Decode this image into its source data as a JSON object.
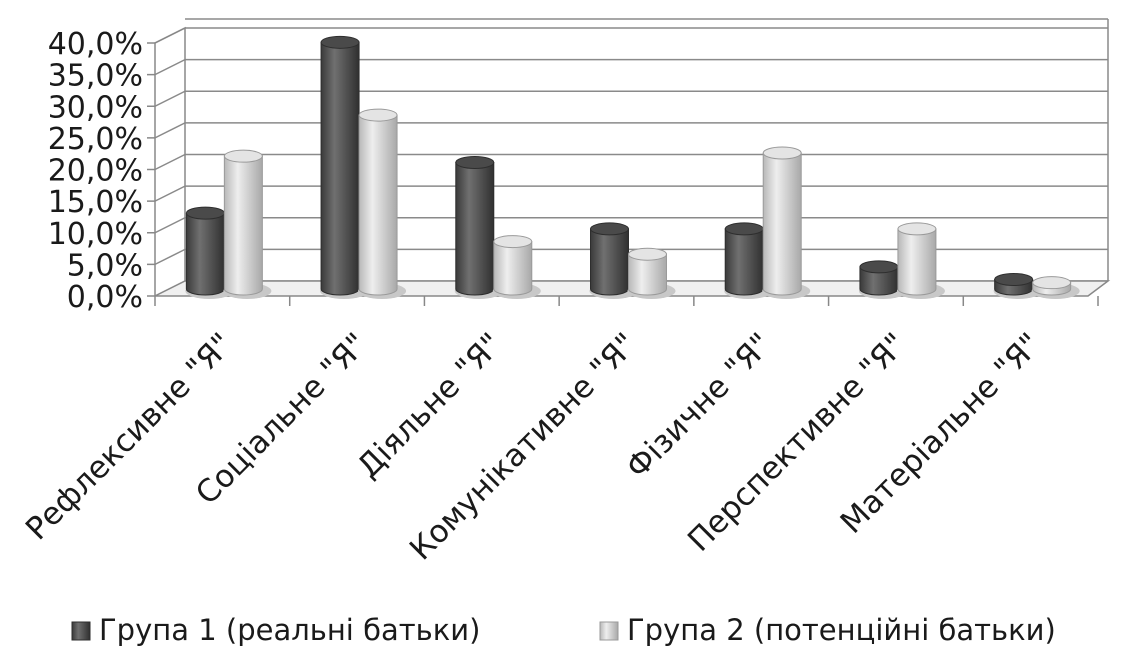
{
  "chart_data": {
    "type": "bar",
    "style": "3d-cylinder",
    "categories": [
      "Рефлексивне \"Я\"",
      "Соціальне \"Я\"",
      "Діяльне \"Я\"",
      "Комунікативне \"Я\"",
      "Фізичне \"Я\"",
      "Перспективне \"Я\"",
      "Матеріальне \"Я\""
    ],
    "series": [
      {
        "name": "Група 1 (реальні батьки)",
        "values": [
          12.0,
          39.0,
          20.0,
          9.5,
          9.5,
          3.5,
          1.5
        ],
        "color": "#555555"
      },
      {
        "name": "Група 2 (потенційні батьки)",
        "values": [
          21.0,
          27.5,
          7.5,
          5.5,
          21.5,
          9.5,
          1.0
        ],
        "color": "#d6d6d6"
      }
    ],
    "ylim": [
      0,
      40
    ],
    "ytick_labels": [
      "0,0%",
      "5,0%",
      "10,0%",
      "15,0%",
      "20,0%",
      "25,0%",
      "30,0%",
      "35,0%",
      "40,0%"
    ],
    "grid": true,
    "legend_position": "bottom",
    "title": "",
    "xlabel": "",
    "ylabel": ""
  }
}
